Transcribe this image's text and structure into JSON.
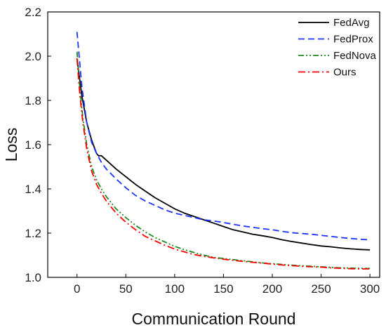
{
  "chart_data": {
    "type": "line",
    "xlabel": "Communication Round",
    "ylabel": "Loss",
    "xlim": [
      -30,
      310
    ],
    "ylim": [
      1.0,
      2.2
    ],
    "xticks": [
      0,
      50,
      100,
      150,
      200,
      250,
      300
    ],
    "yticks": [
      1.0,
      1.2,
      1.4,
      1.6,
      1.8,
      2.0,
      2.2
    ],
    "xtick_labels": [
      "0",
      "50",
      "100",
      "150",
      "200",
      "250",
      "300"
    ],
    "ytick_labels": [
      "1.0",
      "1.2",
      "1.4",
      "1.6",
      "1.8",
      "2.0",
      "2.2"
    ],
    "grid": false,
    "legend_position": "top-right",
    "series": [
      {
        "name": "FedAvg",
        "color": "#000000",
        "style": "solid",
        "x": [
          0,
          5,
          10,
          15,
          20,
          22,
          25,
          30,
          40,
          50,
          60,
          70,
          80,
          90,
          100,
          110,
          120,
          130,
          140,
          150,
          160,
          170,
          180,
          190,
          200,
          210,
          220,
          230,
          240,
          250,
          260,
          270,
          280,
          290,
          300
        ],
        "y": [
          1.99,
          1.82,
          1.7,
          1.62,
          1.56,
          1.55,
          1.55,
          1.53,
          1.49,
          1.455,
          1.42,
          1.39,
          1.36,
          1.335,
          1.31,
          1.29,
          1.275,
          1.26,
          1.245,
          1.23,
          1.215,
          1.205,
          1.195,
          1.188,
          1.18,
          1.17,
          1.162,
          1.155,
          1.148,
          1.142,
          1.138,
          1.133,
          1.129,
          1.126,
          1.124
        ]
      },
      {
        "name": "FedProx",
        "color": "#1a33ff",
        "style": "dashed",
        "x": [
          0,
          5,
          10,
          15,
          20,
          25,
          30,
          40,
          50,
          60,
          70,
          80,
          90,
          100,
          110,
          120,
          130,
          140,
          150,
          160,
          170,
          180,
          190,
          200,
          210,
          220,
          230,
          240,
          250,
          260,
          270,
          280,
          290,
          300
        ],
        "y": [
          2.11,
          1.86,
          1.7,
          1.61,
          1.56,
          1.52,
          1.49,
          1.445,
          1.405,
          1.37,
          1.345,
          1.325,
          1.305,
          1.29,
          1.28,
          1.27,
          1.26,
          1.255,
          1.248,
          1.24,
          1.232,
          1.226,
          1.22,
          1.215,
          1.208,
          1.202,
          1.198,
          1.195,
          1.19,
          1.185,
          1.18,
          1.176,
          1.172,
          1.17
        ]
      },
      {
        "name": "FedNova",
        "color": "#1e8a1e",
        "style": "dash-dot-dot",
        "x": [
          0,
          3,
          6,
          10,
          15,
          20,
          25,
          30,
          40,
          50,
          60,
          70,
          80,
          90,
          100,
          110,
          120,
          130,
          140,
          150,
          160,
          170,
          180,
          190,
          200,
          210,
          220,
          230,
          240,
          250,
          260,
          270,
          280,
          290,
          300
        ],
        "y": [
          2.02,
          1.85,
          1.72,
          1.6,
          1.5,
          1.44,
          1.4,
          1.365,
          1.31,
          1.27,
          1.235,
          1.205,
          1.18,
          1.16,
          1.14,
          1.125,
          1.112,
          1.1,
          1.09,
          1.085,
          1.08,
          1.075,
          1.07,
          1.065,
          1.062,
          1.058,
          1.055,
          1.052,
          1.05,
          1.048,
          1.045,
          1.043,
          1.042,
          1.041,
          1.04
        ]
      },
      {
        "name": "Ours",
        "color": "#ff0000",
        "style": "dash-dot",
        "x": [
          0,
          3,
          6,
          10,
          15,
          20,
          25,
          30,
          40,
          50,
          60,
          70,
          80,
          90,
          100,
          110,
          120,
          130,
          140,
          150,
          160,
          170,
          180,
          190,
          200,
          210,
          220,
          230,
          240,
          250,
          260,
          270,
          280,
          290,
          300
        ],
        "y": [
          1.99,
          1.82,
          1.7,
          1.58,
          1.48,
          1.42,
          1.38,
          1.345,
          1.29,
          1.25,
          1.215,
          1.185,
          1.165,
          1.145,
          1.128,
          1.115,
          1.103,
          1.095,
          1.088,
          1.082,
          1.077,
          1.072,
          1.068,
          1.064,
          1.06,
          1.056,
          1.053,
          1.05,
          1.048,
          1.046,
          1.043,
          1.041,
          1.039,
          1.038,
          1.038
        ]
      }
    ]
  }
}
